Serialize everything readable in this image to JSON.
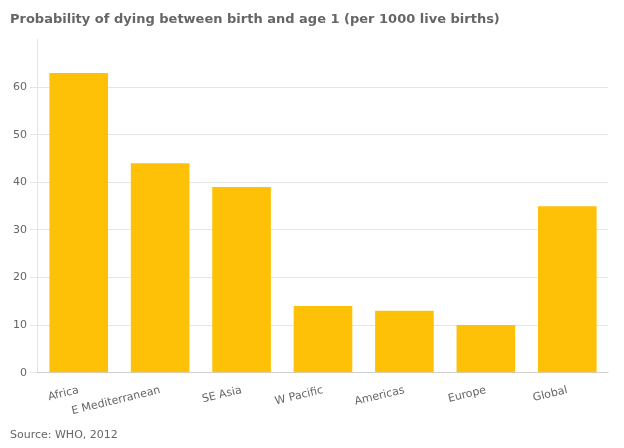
{
  "chart_data": {
    "type": "bar",
    "title": "Probability of dying between birth and age 1 (per 1000 live births)",
    "categories": [
      "Africa",
      "E Mediterranean",
      "SE Asia",
      "W Pacific",
      "Americas",
      "Europe",
      "Global"
    ],
    "values": [
      63,
      44,
      39,
      14,
      13,
      10,
      35
    ],
    "color": "#FFC107",
    "ylim": [
      0,
      70
    ],
    "yticks": [
      0,
      10,
      20,
      30,
      40,
      50,
      60
    ],
    "grid": true,
    "annotations": [
      "Source: WHO, 2012"
    ]
  }
}
